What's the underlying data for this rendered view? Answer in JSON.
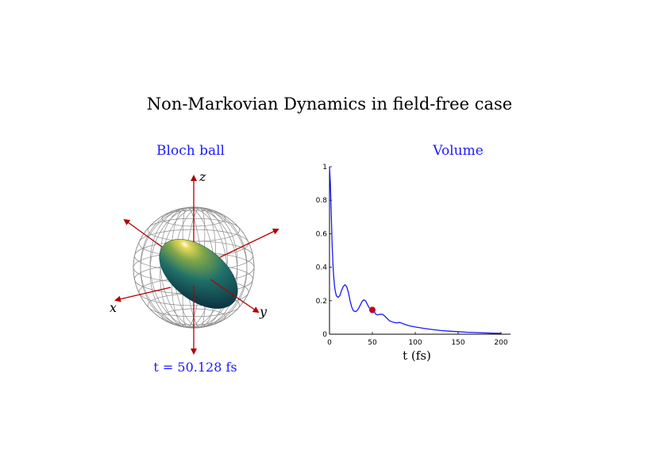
{
  "title": "Non-Markovian Dynamics in field-free case",
  "left_panel": {
    "heading": "Bloch ball",
    "axis_labels": {
      "x": "x",
      "y": "y",
      "z": "z"
    },
    "time_label": "t = 50.128 fs"
  },
  "colors": {
    "heading": "#1a1aff",
    "axes": "#b40000",
    "sphere_grid": "#8c8c8c",
    "ellipsoid_dark": "#0a3a4a",
    "ellipsoid_mid": "#1f6f6a",
    "ellipsoid_light": "#c9b23a",
    "curve": "#1a1aff",
    "marker": "#c0002a"
  },
  "chart_data": {
    "type": "line",
    "title": "Volume",
    "xlabel": "t (fs)",
    "ylabel": "",
    "xlim": [
      0,
      200
    ],
    "ylim": [
      0,
      1
    ],
    "x_ticks": [
      0,
      50,
      100,
      150,
      200
    ],
    "y_ticks": [
      0,
      0.2,
      0.4,
      0.6,
      0.8,
      1
    ],
    "grid": false,
    "series": [
      {
        "x": [
          0,
          1,
          2,
          3,
          4,
          5,
          6,
          7,
          8,
          9,
          10,
          12,
          14,
          16,
          18,
          20,
          22,
          24,
          26,
          28,
          30,
          32,
          34,
          36,
          38,
          40,
          42,
          44,
          46,
          48,
          50,
          52,
          54,
          56,
          58,
          60,
          62,
          64,
          66,
          68,
          70,
          74,
          78,
          82,
          86,
          90,
          95,
          100,
          110,
          120,
          130,
          140,
          150,
          160,
          170,
          180,
          190,
          200
        ],
        "y": [
          1.0,
          0.9,
          0.72,
          0.55,
          0.42,
          0.34,
          0.28,
          0.25,
          0.23,
          0.225,
          0.22,
          0.23,
          0.26,
          0.285,
          0.295,
          0.285,
          0.25,
          0.2,
          0.16,
          0.14,
          0.135,
          0.14,
          0.155,
          0.175,
          0.195,
          0.205,
          0.2,
          0.18,
          0.16,
          0.148,
          0.145,
          0.135,
          0.12,
          0.115,
          0.118,
          0.12,
          0.118,
          0.11,
          0.1,
          0.09,
          0.08,
          0.072,
          0.068,
          0.07,
          0.062,
          0.055,
          0.048,
          0.043,
          0.035,
          0.028,
          0.022,
          0.018,
          0.015,
          0.012,
          0.01,
          0.008,
          0.006,
          0.005
        ]
      }
    ],
    "marker_point": {
      "x": 50,
      "y": 0.145
    }
  }
}
